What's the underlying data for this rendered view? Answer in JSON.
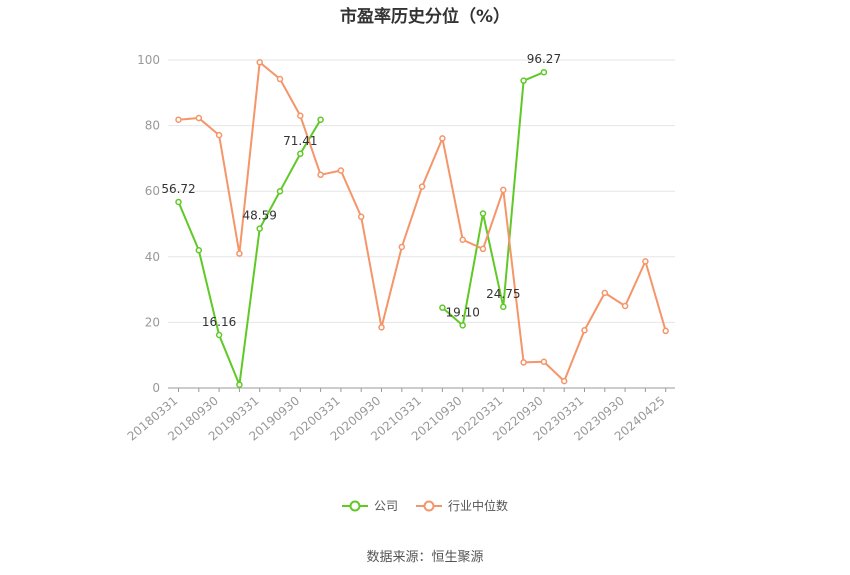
{
  "chart_data": {
    "type": "line",
    "title": "市盈率历史分位（%）",
    "source": "数据来源：恒生聚源",
    "ylim": [
      0,
      100
    ],
    "yticks": [
      0,
      20,
      40,
      60,
      80,
      100
    ],
    "xtick_labels": [
      "20180331",
      "20180930",
      "20190331",
      "20190930",
      "20200331",
      "20200930",
      "20210331",
      "20210930",
      "20220331",
      "20220930",
      "20230331",
      "20230930",
      "20240425"
    ],
    "x": [
      "20180331",
      "20180630",
      "20180930",
      "20181231",
      "20190331",
      "20190630",
      "20190930",
      "20191231",
      "20200331",
      "20200630",
      "20200930",
      "20201231",
      "20210331",
      "20210630",
      "20210930",
      "20211231",
      "20220331",
      "20220630",
      "20220930",
      "20221231",
      "20230331",
      "20230630",
      "20230930",
      "20231231",
      "20240425"
    ],
    "grid": true,
    "legend_position": "bottom",
    "series": [
      {
        "name": "公司",
        "color": "#5fc926",
        "values": [
          56.72,
          42.0,
          16.16,
          1.0,
          48.59,
          60.0,
          71.41,
          81.8,
          null,
          null,
          null,
          null,
          null,
          24.5,
          19.1,
          53.2,
          24.75,
          93.7,
          96.27,
          null,
          null,
          null,
          null,
          null,
          null
        ],
        "labels": {
          "0": "56.72",
          "2": "16.16",
          "4": "48.59",
          "6": "71.41",
          "14": "19.10",
          "16": "24.75",
          "18": "96.27"
        }
      },
      {
        "name": "行业中位数",
        "color": "#f5956a",
        "values": [
          81.8,
          82.3,
          77.1,
          41.0,
          99.3,
          94.2,
          83.0,
          65.0,
          66.3,
          52.2,
          18.5,
          43.0,
          61.4,
          76.1,
          45.2,
          42.4,
          60.4,
          7.8,
          8.0,
          2.1,
          17.6,
          29.0,
          25.0,
          38.6,
          17.4
        ],
        "labels": {}
      }
    ]
  }
}
